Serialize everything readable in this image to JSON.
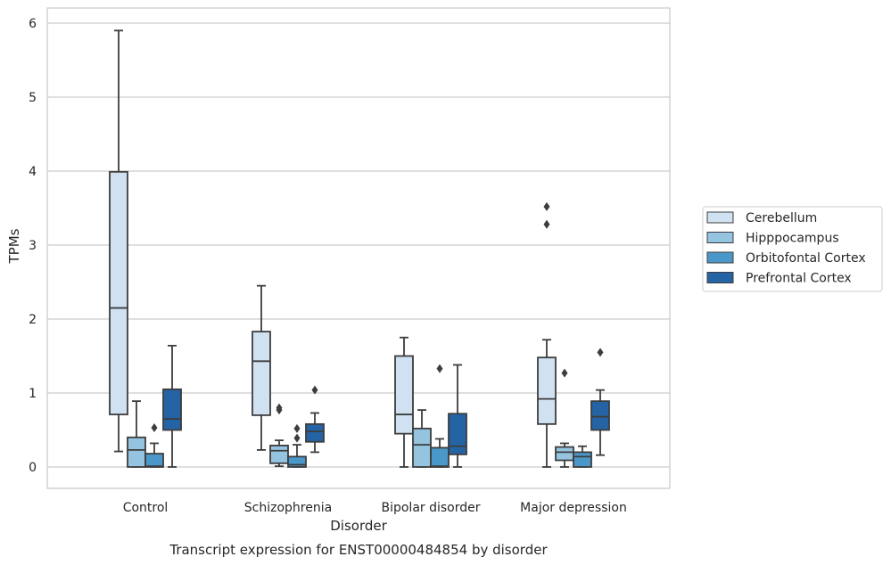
{
  "chart_data": {
    "type": "box",
    "title": "",
    "caption": "Transcript expression for ENST00000484854 by disorder",
    "xlabel": "Disorder",
    "ylabel": "TPMs",
    "ylim": [
      -0.3,
      6.2
    ],
    "yticks": [
      0,
      1,
      2,
      3,
      4,
      5,
      6
    ],
    "grid": "horizontal",
    "legend_placement": "right",
    "categories": [
      "Control",
      "Schizophrenia",
      "Bipolar disorder",
      "Major depression"
    ],
    "series": [
      {
        "name": "Cerebellum",
        "color": "#d0e1f2",
        "boxes": [
          {
            "whisker_low": 0.21,
            "q1": 0.71,
            "median": 2.15,
            "q3": 3.99,
            "whisker_high": 5.9,
            "outliers": []
          },
          {
            "whisker_low": 0.23,
            "q1": 0.7,
            "median": 1.43,
            "q3": 1.83,
            "whisker_high": 2.45,
            "outliers": []
          },
          {
            "whisker_low": 0.0,
            "q1": 0.45,
            "median": 0.71,
            "q3": 1.5,
            "whisker_high": 1.75,
            "outliers": []
          },
          {
            "whisker_low": 0.0,
            "q1": 0.58,
            "median": 0.92,
            "q3": 1.48,
            "whisker_high": 1.72,
            "outliers": [
              3.28,
              3.52
            ]
          }
        ]
      },
      {
        "name": "Hipppocampus",
        "color": "#94c4df",
        "boxes": [
          {
            "whisker_low": 0.0,
            "q1": 0.0,
            "median": 0.23,
            "q3": 0.4,
            "whisker_high": 0.89,
            "outliers": []
          },
          {
            "whisker_low": 0.01,
            "q1": 0.05,
            "median": 0.22,
            "q3": 0.29,
            "whisker_high": 0.36,
            "outliers": [
              0.77,
              0.8
            ]
          },
          {
            "whisker_low": 0.0,
            "q1": 0.0,
            "median": 0.3,
            "q3": 0.52,
            "whisker_high": 0.77,
            "outliers": []
          },
          {
            "whisker_low": 0.0,
            "q1": 0.09,
            "median": 0.2,
            "q3": 0.27,
            "whisker_high": 0.32,
            "outliers": [
              1.27
            ]
          }
        ]
      },
      {
        "name": "Orbitofontal Cortex",
        "color": "#4a98c9",
        "boxes": [
          {
            "whisker_low": 0.0,
            "q1": 0.0,
            "median": 0.01,
            "q3": 0.18,
            "whisker_high": 0.32,
            "outliers": [
              0.53
            ]
          },
          {
            "whisker_low": 0.0,
            "q1": 0.0,
            "median": 0.03,
            "q3": 0.14,
            "whisker_high": 0.3,
            "outliers": [
              0.39,
              0.52
            ]
          },
          {
            "whisker_low": 0.0,
            "q1": 0.0,
            "median": 0.01,
            "q3": 0.26,
            "whisker_high": 0.38,
            "outliers": [
              1.33
            ]
          },
          {
            "whisker_low": 0.0,
            "q1": 0.0,
            "median": 0.14,
            "q3": 0.2,
            "whisker_high": 0.28,
            "outliers": []
          }
        ]
      },
      {
        "name": "Prefrontal Cortex",
        "color": "#2464a5",
        "boxes": [
          {
            "whisker_low": 0.0,
            "q1": 0.5,
            "median": 0.65,
            "q3": 1.05,
            "whisker_high": 1.64,
            "outliers": []
          },
          {
            "whisker_low": 0.2,
            "q1": 0.34,
            "median": 0.48,
            "q3": 0.58,
            "whisker_high": 0.73,
            "outliers": [
              1.04
            ]
          },
          {
            "whisker_low": 0.0,
            "q1": 0.17,
            "median": 0.28,
            "q3": 0.72,
            "whisker_high": 1.38,
            "outliers": []
          },
          {
            "whisker_low": 0.16,
            "q1": 0.5,
            "median": 0.68,
            "q3": 0.89,
            "whisker_high": 1.04,
            "outliers": [
              1.55
            ]
          }
        ]
      }
    ]
  }
}
